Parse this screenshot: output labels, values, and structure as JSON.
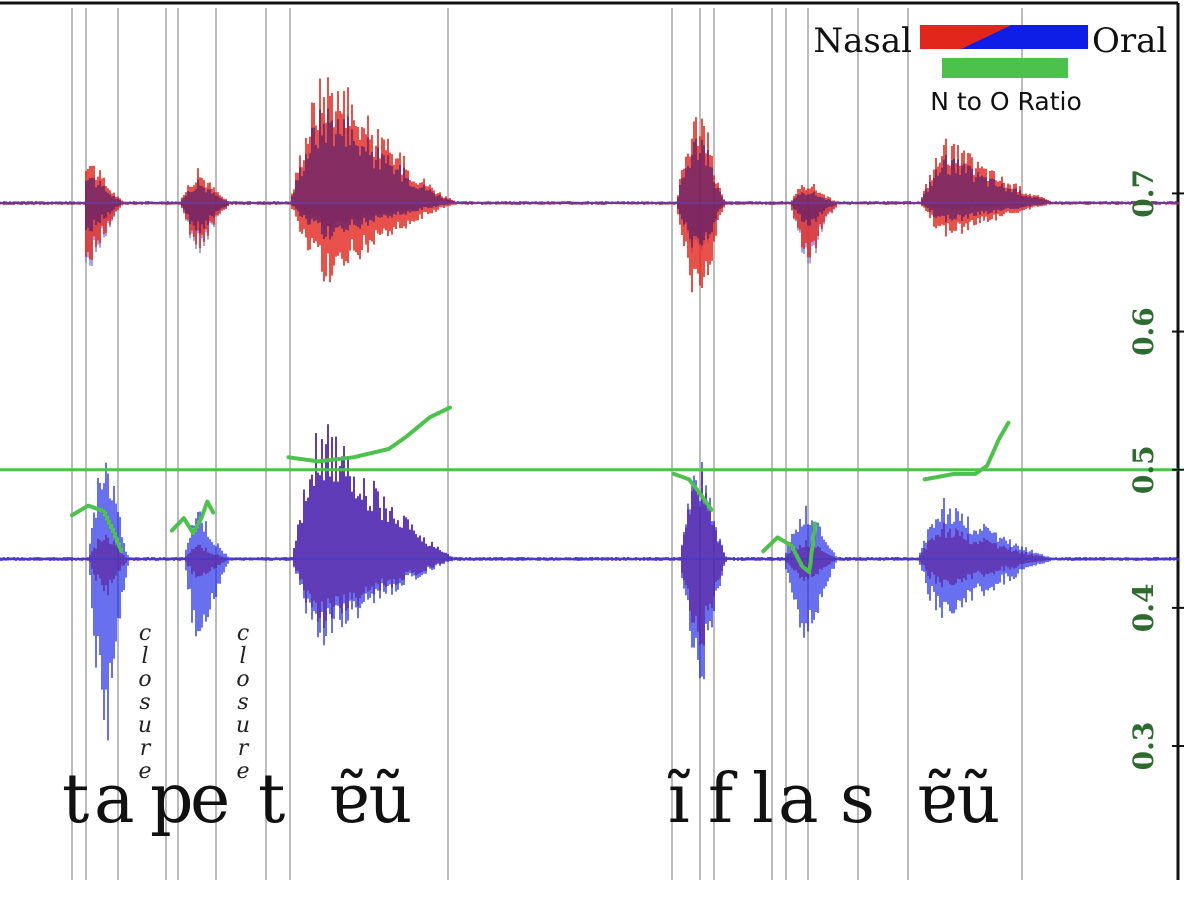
{
  "chart_data": {
    "type": "line",
    "legend": {
      "nasal_label": "Nasal",
      "oral_label": "Oral",
      "ratio_label": "N to O Ratio",
      "placement": "top-right"
    },
    "colors": {
      "nasal": "#e3261c",
      "oral": "#0f1ee6",
      "overlap": "#6b1a5e",
      "oral_light": "#8e8ee6",
      "ratio": "#4cc24c",
      "tick_label": "#2e6b2e",
      "boundary": "#bbbbbb"
    },
    "right_axis": {
      "ticks": [
        0.3,
        0.4,
        0.5,
        0.6,
        0.7
      ],
      "tick_labels": [
        "0.3",
        "0.4",
        "0.5",
        "0.6",
        "0.7"
      ],
      "range": [
        0.19,
        0.84
      ]
    },
    "reference_line": 0.5,
    "segments": [
      {
        "label": "t",
        "type": "segment"
      },
      {
        "label": "a",
        "type": "segment"
      },
      {
        "label": "closure",
        "type": "annotation"
      },
      {
        "label": "p",
        "type": "segment"
      },
      {
        "label": "e",
        "type": "segment"
      },
      {
        "label": "closure",
        "type": "annotation"
      },
      {
        "label": "t",
        "type": "segment"
      },
      {
        "label": "ɐ̃ũ",
        "type": "segment"
      },
      {
        "label": "ĩ",
        "type": "segment"
      },
      {
        "label": "f",
        "type": "segment"
      },
      {
        "label": "l",
        "type": "segment"
      },
      {
        "label": "a",
        "type": "segment"
      },
      {
        "label": "s",
        "type": "segment"
      },
      {
        "label": "ɐ̃ũ",
        "type": "segment"
      }
    ],
    "ratio_series": [
      {
        "name": "a",
        "points": [
          [
            0.061,
            0.467
          ],
          [
            0.075,
            0.474
          ],
          [
            0.088,
            0.47
          ],
          [
            0.097,
            0.454
          ],
          [
            0.103,
            0.441
          ]
        ]
      },
      {
        "name": "e",
        "points": [
          [
            0.146,
            0.456
          ],
          [
            0.156,
            0.465
          ],
          [
            0.164,
            0.454
          ],
          [
            0.171,
            0.465
          ],
          [
            0.176,
            0.477
          ],
          [
            0.181,
            0.469
          ]
        ]
      },
      {
        "name": "ɐ̃ũ (1)",
        "points": [
          [
            0.245,
            0.509
          ],
          [
            0.27,
            0.506
          ],
          [
            0.3,
            0.509
          ],
          [
            0.33,
            0.515
          ],
          [
            0.345,
            0.524
          ],
          [
            0.365,
            0.538
          ],
          [
            0.382,
            0.545
          ]
        ]
      },
      {
        "name": "ĩ",
        "points": [
          [
            0.572,
            0.497
          ],
          [
            0.585,
            0.493
          ],
          [
            0.595,
            0.482
          ],
          [
            0.604,
            0.471
          ]
        ]
      },
      {
        "name": "l a",
        "points": [
          [
            0.648,
            0.441
          ],
          [
            0.66,
            0.451
          ],
          [
            0.672,
            0.445
          ],
          [
            0.681,
            0.43
          ],
          [
            0.687,
            0.426
          ],
          [
            0.692,
            0.461
          ]
        ]
      },
      {
        "name": "ɐ̃ũ (2)",
        "points": [
          [
            0.785,
            0.493
          ],
          [
            0.81,
            0.497
          ],
          [
            0.828,
            0.497
          ],
          [
            0.838,
            0.503
          ],
          [
            0.848,
            0.522
          ],
          [
            0.856,
            0.534
          ]
        ]
      }
    ]
  }
}
